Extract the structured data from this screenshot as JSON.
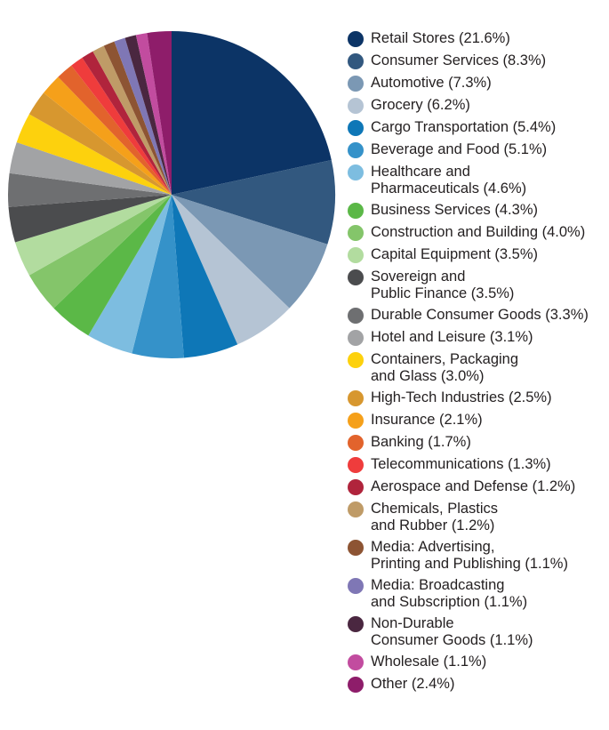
{
  "chart_data": {
    "type": "pie",
    "start_angle_deg": 0,
    "direction": "clockwise",
    "legend_position": "right",
    "slices": [
      {
        "label": "Retail Stores (21.6%)",
        "value": 21.6,
        "color": "#0c3466"
      },
      {
        "label": "Consumer Services (8.3%)",
        "value": 8.3,
        "color": "#32587f"
      },
      {
        "label": "Automotive (7.3%)",
        "value": 7.3,
        "color": "#7b98b4"
      },
      {
        "label": "Grocery (6.2%)",
        "value": 6.2,
        "color": "#b5c4d4"
      },
      {
        "label": "Cargo Transportation (5.4%)",
        "value": 5.4,
        "color": "#0e77b7"
      },
      {
        "label": "Beverage and Food (5.1%)",
        "value": 5.1,
        "color": "#3592c9"
      },
      {
        "label": "Healthcare and\nPharmaceuticals (4.6%)",
        "value": 4.6,
        "color": "#7dbde0"
      },
      {
        "label": "Business Services (4.3%)",
        "value": 4.3,
        "color": "#5bb847"
      },
      {
        "label": "Construction and Building (4.0%)",
        "value": 4.0,
        "color": "#84c56a"
      },
      {
        "label": "Capital Equipment (3.5%)",
        "value": 3.5,
        "color": "#b2dc9f"
      },
      {
        "label": "Sovereign and\nPublic Finance (3.5%)",
        "value": 3.5,
        "color": "#4b4c4e"
      },
      {
        "label": "Durable Consumer Goods (3.3%)",
        "value": 3.3,
        "color": "#6e6f71"
      },
      {
        "label": "Hotel and Leisure (3.1%)",
        "value": 3.1,
        "color": "#a2a3a5"
      },
      {
        "label": "Containers, Packaging\nand Glass (3.0%)",
        "value": 3.0,
        "color": "#fdd10d"
      },
      {
        "label": "High-Tech Industries (2.5%)",
        "value": 2.5,
        "color": "#d7972f"
      },
      {
        "label": "Insurance (2.1%)",
        "value": 2.1,
        "color": "#f5a01a"
      },
      {
        "label": "Banking (1.7%)",
        "value": 1.7,
        "color": "#e2632c"
      },
      {
        "label": "Telecommunications (1.3%)",
        "value": 1.3,
        "color": "#ef3c3c"
      },
      {
        "label": "Aerospace and Defense (1.2%)",
        "value": 1.2,
        "color": "#b0243c"
      },
      {
        "label": "Chemicals, Plastics\nand Rubber (1.2%)",
        "value": 1.2,
        "color": "#bf9b67"
      },
      {
        "label": "Media: Advertising,\nPrinting and Publishing (1.1%)",
        "value": 1.1,
        "color": "#8d5433"
      },
      {
        "label": "Media: Broadcasting\nand Subscription (1.1%)",
        "value": 1.1,
        "color": "#7f77b5"
      },
      {
        "label": "Non-Durable\nConsumer Goods (1.1%)",
        "value": 1.1,
        "color": "#4a2740"
      },
      {
        "label": "Wholesale (1.1%)",
        "value": 1.1,
        "color": "#c24c9f"
      },
      {
        "label": "Other (2.4%)",
        "value": 2.4,
        "color": "#8e1d6a"
      }
    ]
  }
}
